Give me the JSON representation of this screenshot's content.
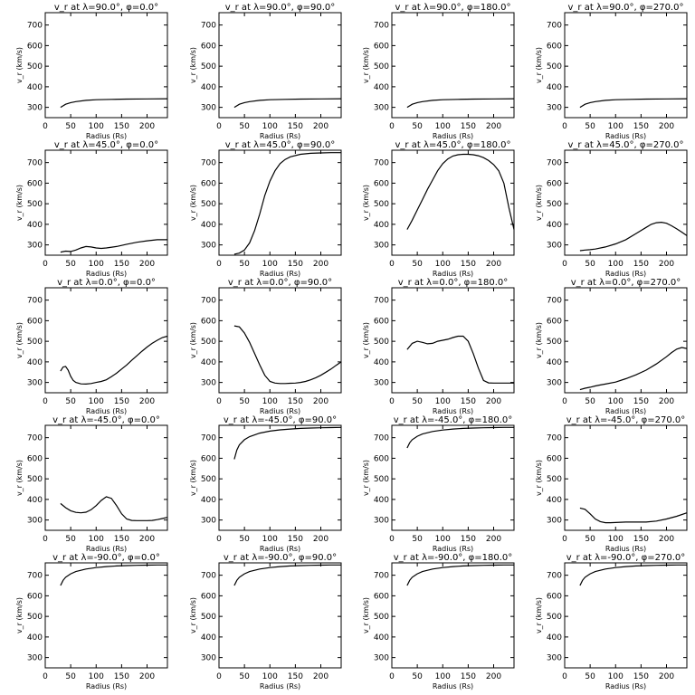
{
  "figure": {
    "xlabel": "Radius (Rs)",
    "ylabel": "v_r (km/s)",
    "x_ticks": [
      0,
      50,
      100,
      150,
      200
    ],
    "y_ticks": [
      300,
      400,
      500,
      600,
      700
    ]
  },
  "chart_data": [
    {
      "type": "line",
      "title": "v_r at λ=90.0°, φ=0.0°",
      "xlim": [
        0,
        240
      ],
      "ylim": [
        250,
        760
      ],
      "x": [
        30,
        40,
        50,
        60,
        80,
        100,
        130,
        160,
        200,
        240
      ],
      "y": [
        300,
        315,
        323,
        328,
        334,
        337,
        339,
        340,
        341,
        342
      ]
    },
    {
      "type": "line",
      "title": "v_r at λ=90.0°, φ=90.0°",
      "xlim": [
        0,
        240
      ],
      "ylim": [
        250,
        760
      ],
      "x": [
        30,
        40,
        50,
        60,
        80,
        100,
        130,
        160,
        200,
        240
      ],
      "y": [
        300,
        315,
        323,
        328,
        334,
        337,
        339,
        340,
        341,
        342
      ]
    },
    {
      "type": "line",
      "title": "v_r at λ=90.0°, φ=180.0°",
      "xlim": [
        0,
        240
      ],
      "ylim": [
        250,
        760
      ],
      "x": [
        30,
        40,
        50,
        60,
        80,
        100,
        130,
        160,
        200,
        240
      ],
      "y": [
        300,
        315,
        323,
        328,
        334,
        337,
        339,
        340,
        341,
        342
      ]
    },
    {
      "type": "line",
      "title": "v_r at λ=90.0°, φ=270.0°",
      "xlim": [
        0,
        240
      ],
      "ylim": [
        250,
        760
      ],
      "x": [
        30,
        40,
        50,
        60,
        80,
        100,
        130,
        160,
        200,
        240
      ],
      "y": [
        300,
        315,
        323,
        328,
        334,
        337,
        339,
        340,
        341,
        342
      ]
    },
    {
      "type": "line",
      "title": "v_r at λ=45.0°, φ=0.0°",
      "xlim": [
        0,
        240
      ],
      "ylim": [
        250,
        760
      ],
      "x": [
        30,
        40,
        50,
        60,
        70,
        80,
        90,
        100,
        110,
        120,
        140,
        160,
        180,
        200,
        220,
        240
      ],
      "y": [
        265,
        270,
        268,
        275,
        285,
        292,
        290,
        285,
        283,
        285,
        292,
        303,
        313,
        320,
        325,
        325
      ]
    },
    {
      "type": "line",
      "title": "v_r at λ=45.0°, φ=90.0°",
      "xlim": [
        0,
        240
      ],
      "ylim": [
        250,
        760
      ],
      "x": [
        30,
        40,
        50,
        60,
        70,
        80,
        90,
        100,
        110,
        120,
        130,
        140,
        160,
        180,
        200,
        220,
        240
      ],
      "y": [
        255,
        260,
        275,
        310,
        370,
        450,
        540,
        610,
        660,
        695,
        715,
        728,
        740,
        745,
        747,
        748,
        748
      ]
    },
    {
      "type": "line",
      "title": "v_r at λ=45.0°, φ=180.0°",
      "xlim": [
        0,
        240
      ],
      "ylim": [
        250,
        760
      ],
      "x": [
        30,
        40,
        50,
        60,
        70,
        80,
        90,
        100,
        110,
        120,
        130,
        140,
        150,
        160,
        170,
        180,
        190,
        200,
        210,
        220,
        230,
        240
      ],
      "y": [
        375,
        420,
        470,
        520,
        570,
        615,
        660,
        695,
        718,
        732,
        738,
        740,
        740,
        738,
        733,
        724,
        710,
        690,
        660,
        600,
        480,
        375
      ]
    },
    {
      "type": "line",
      "title": "v_r at λ=45.0°, φ=270.0°",
      "xlim": [
        0,
        240
      ],
      "ylim": [
        250,
        760
      ],
      "x": [
        30,
        40,
        50,
        60,
        80,
        100,
        120,
        140,
        160,
        170,
        180,
        190,
        200,
        210,
        220,
        230,
        240
      ],
      "y": [
        272,
        275,
        277,
        280,
        290,
        305,
        325,
        355,
        385,
        400,
        408,
        410,
        405,
        393,
        378,
        362,
        345
      ]
    },
    {
      "type": "line",
      "title": "v_r at λ=0.0°, φ=0.0°",
      "xlim": [
        0,
        240
      ],
      "ylim": [
        250,
        760
      ],
      "x": [
        30,
        35,
        40,
        45,
        50,
        55,
        60,
        70,
        80,
        90,
        100,
        110,
        120,
        130,
        140,
        150,
        160,
        170,
        180,
        190,
        200,
        210,
        220,
        230,
        240
      ],
      "y": [
        355,
        375,
        378,
        360,
        330,
        310,
        300,
        293,
        292,
        295,
        300,
        305,
        313,
        328,
        345,
        365,
        385,
        408,
        430,
        452,
        472,
        490,
        505,
        518,
        525
      ]
    },
    {
      "type": "line",
      "title": "v_r at λ=0.0°, φ=90.0°",
      "xlim": [
        0,
        240
      ],
      "ylim": [
        250,
        760
      ],
      "x": [
        30,
        40,
        50,
        60,
        70,
        80,
        90,
        100,
        110,
        120,
        130,
        140,
        150,
        160,
        170,
        180,
        190,
        200,
        210,
        220,
        230,
        240
      ],
      "y": [
        575,
        570,
        540,
        495,
        440,
        385,
        335,
        305,
        297,
        295,
        295,
        296,
        297,
        300,
        305,
        313,
        323,
        335,
        350,
        365,
        383,
        400
      ]
    },
    {
      "type": "line",
      "title": "v_r at λ=0.0°, φ=180.0°",
      "xlim": [
        0,
        240
      ],
      "ylim": [
        250,
        760
      ],
      "x": [
        30,
        40,
        50,
        60,
        70,
        80,
        90,
        100,
        110,
        120,
        130,
        140,
        150,
        160,
        170,
        180,
        190,
        200,
        210,
        220,
        230,
        240
      ],
      "y": [
        460,
        490,
        500,
        495,
        488,
        490,
        500,
        505,
        510,
        518,
        525,
        525,
        500,
        440,
        370,
        310,
        298,
        297,
        297,
        297,
        297,
        297
      ]
    },
    {
      "type": "line",
      "title": "v_r at λ=0.0°, φ=270.0°",
      "xlim": [
        0,
        240
      ],
      "ylim": [
        250,
        760
      ],
      "x": [
        30,
        40,
        50,
        60,
        70,
        80,
        100,
        120,
        140,
        160,
        180,
        200,
        210,
        220,
        230,
        240
      ],
      "y": [
        265,
        272,
        277,
        283,
        288,
        292,
        302,
        318,
        337,
        360,
        390,
        425,
        445,
        462,
        470,
        465
      ]
    },
    {
      "type": "line",
      "title": "v_r at λ=-45.0°, φ=0.0°",
      "xlim": [
        0,
        240
      ],
      "ylim": [
        250,
        760
      ],
      "x": [
        30,
        40,
        50,
        60,
        70,
        80,
        90,
        100,
        110,
        120,
        130,
        140,
        150,
        160,
        170,
        180,
        190,
        200,
        210,
        220,
        230,
        240
      ],
      "y": [
        380,
        360,
        345,
        337,
        335,
        338,
        350,
        370,
        395,
        413,
        405,
        370,
        330,
        305,
        298,
        297,
        297,
        297,
        298,
        302,
        307,
        313
      ]
    },
    {
      "type": "line",
      "title": "v_r at λ=-45.0°, φ=90.0°",
      "xlim": [
        0,
        240
      ],
      "ylim": [
        250,
        760
      ],
      "x": [
        30,
        35,
        40,
        50,
        60,
        80,
        100,
        120,
        140,
        160,
        180,
        200,
        220,
        240
      ],
      "y": [
        595,
        640,
        665,
        690,
        705,
        722,
        732,
        738,
        742,
        745,
        747,
        748,
        749,
        750
      ]
    },
    {
      "type": "line",
      "title": "v_r at λ=-45.0°, φ=180.0°",
      "xlim": [
        0,
        240
      ],
      "ylim": [
        250,
        760
      ],
      "x": [
        30,
        35,
        40,
        50,
        60,
        80,
        100,
        120,
        140,
        160,
        180,
        200,
        220,
        240
      ],
      "y": [
        650,
        675,
        690,
        707,
        718,
        730,
        737,
        742,
        745,
        747,
        748,
        749,
        750,
        750
      ]
    },
    {
      "type": "line",
      "title": "v_r at λ=-45.0°, φ=270.0°",
      "xlim": [
        0,
        240
      ],
      "ylim": [
        250,
        760
      ],
      "x": [
        30,
        40,
        50,
        60,
        70,
        80,
        90,
        100,
        120,
        140,
        160,
        180,
        200,
        220,
        240
      ],
      "y": [
        358,
        352,
        330,
        305,
        292,
        287,
        287,
        288,
        290,
        290,
        290,
        295,
        305,
        318,
        335
      ]
    },
    {
      "type": "line",
      "title": "v_r at λ=-90.0°, φ=0.0°",
      "xlim": [
        0,
        240
      ],
      "ylim": [
        250,
        760
      ],
      "x": [
        30,
        35,
        40,
        50,
        60,
        80,
        100,
        120,
        140,
        160,
        180,
        200,
        220,
        240
      ],
      "y": [
        650,
        675,
        690,
        707,
        718,
        730,
        737,
        742,
        745,
        747,
        748,
        749,
        750,
        750
      ]
    },
    {
      "type": "line",
      "title": "v_r at λ=-90.0°, φ=90.0°",
      "xlim": [
        0,
        240
      ],
      "ylim": [
        250,
        760
      ],
      "x": [
        30,
        35,
        40,
        50,
        60,
        80,
        100,
        120,
        140,
        160,
        180,
        200,
        220,
        240
      ],
      "y": [
        650,
        675,
        690,
        707,
        718,
        730,
        737,
        742,
        745,
        747,
        748,
        749,
        750,
        750
      ]
    },
    {
      "type": "line",
      "title": "v_r at λ=-90.0°, φ=180.0°",
      "xlim": [
        0,
        240
      ],
      "ylim": [
        250,
        760
      ],
      "x": [
        30,
        35,
        40,
        50,
        60,
        80,
        100,
        120,
        140,
        160,
        180,
        200,
        220,
        240
      ],
      "y": [
        650,
        675,
        690,
        707,
        718,
        730,
        737,
        742,
        745,
        747,
        748,
        749,
        750,
        750
      ]
    },
    {
      "type": "line",
      "title": "v_r at λ=-90.0°, φ=270.0°",
      "xlim": [
        0,
        240
      ],
      "ylim": [
        250,
        760
      ],
      "x": [
        30,
        35,
        40,
        50,
        60,
        80,
        100,
        120,
        140,
        160,
        180,
        200,
        220,
        240
      ],
      "y": [
        650,
        675,
        690,
        707,
        718,
        730,
        737,
        742,
        745,
        747,
        748,
        749,
        750,
        750
      ]
    }
  ]
}
